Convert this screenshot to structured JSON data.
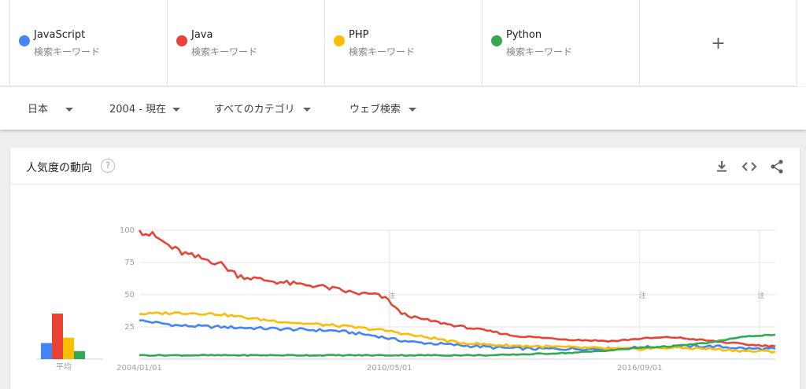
{
  "terms": [
    {
      "name": "JavaScript",
      "sub": "検索キーワード",
      "color": "#4285f4"
    },
    {
      "name": "Java",
      "sub": "検索キーワード",
      "color": "#ea4335"
    },
    {
      "name": "PHP",
      "sub": "検索キーワード",
      "color": "#fbbc04"
    },
    {
      "name": "Python",
      "sub": "検索キーワード",
      "color": "#34a853"
    }
  ],
  "add_term_label": "+",
  "filters": {
    "region": "日本",
    "period": "2004 - 現在",
    "category": "すべてのカテゴリ",
    "search_type": "ウェブ検索"
  },
  "card": {
    "title": "人気度の動向",
    "help_icon": "help-circle-icon",
    "icons": [
      "download-icon",
      "embed-code-icon",
      "share-icon"
    ]
  },
  "chart_data": {
    "type": "line",
    "x_ticks": [
      "2004/01/01",
      "2010/05/01",
      "2016/09/01"
    ],
    "y_ticks": [
      25,
      50,
      75,
      100
    ],
    "ylim": [
      0,
      100
    ],
    "x_range": [
      "2004-01",
      "2020-02"
    ],
    "grid": true,
    "note_label": "注",
    "average_label": "平均",
    "averages": [
      {
        "name": "JavaScript",
        "value": 12
      },
      {
        "name": "Java",
        "value": 34
      },
      {
        "name": "PHP",
        "value": 16
      },
      {
        "name": "Python",
        "value": 6
      }
    ],
    "series": [
      {
        "name": "JavaScript",
        "color": "#4285f4",
        "anchors": [
          [
            2004.0,
            30
          ],
          [
            2005.0,
            26
          ],
          [
            2006.0,
            25
          ],
          [
            2007.0,
            24
          ],
          [
            2008.0,
            23
          ],
          [
            2009.0,
            22
          ],
          [
            2010.0,
            18
          ],
          [
            2010.5,
            15
          ],
          [
            2011.0,
            13
          ],
          [
            2012.0,
            11
          ],
          [
            2013.0,
            9
          ],
          [
            2014.0,
            8
          ],
          [
            2015.0,
            8
          ],
          [
            2016.0,
            8
          ],
          [
            2016.7,
            9
          ],
          [
            2017.5,
            10
          ],
          [
            2018.5,
            10
          ],
          [
            2019.5,
            8
          ],
          [
            2020.1,
            8
          ]
        ]
      },
      {
        "name": "Java",
        "color": "#ea4335",
        "anchors": [
          [
            2004.0,
            100
          ],
          [
            2004.4,
            95
          ],
          [
            2004.9,
            85
          ],
          [
            2005.3,
            80
          ],
          [
            2006.0,
            75
          ],
          [
            2006.5,
            65
          ],
          [
            2007.0,
            62
          ],
          [
            2007.5,
            60
          ],
          [
            2008.0,
            58
          ],
          [
            2008.5,
            57
          ],
          [
            2009.0,
            54
          ],
          [
            2009.5,
            51
          ],
          [
            2010.0,
            50
          ],
          [
            2010.3,
            46
          ],
          [
            2010.6,
            36
          ],
          [
            2011.0,
            32
          ],
          [
            2011.5,
            29
          ],
          [
            2012.0,
            26
          ],
          [
            2013.0,
            21
          ],
          [
            2013.5,
            18
          ],
          [
            2014.0,
            17
          ],
          [
            2015.0,
            15
          ],
          [
            2016.0,
            14
          ],
          [
            2016.7,
            16
          ],
          [
            2017.5,
            17
          ],
          [
            2018.5,
            14
          ],
          [
            2019.5,
            11
          ],
          [
            2020.1,
            10
          ]
        ]
      },
      {
        "name": "PHP",
        "color": "#fbbc04",
        "anchors": [
          [
            2004.0,
            35
          ],
          [
            2005.0,
            36
          ],
          [
            2006.0,
            35
          ],
          [
            2007.0,
            31
          ],
          [
            2008.0,
            28
          ],
          [
            2009.0,
            26
          ],
          [
            2010.0,
            23
          ],
          [
            2010.5,
            21
          ],
          [
            2011.0,
            18
          ],
          [
            2011.5,
            16
          ],
          [
            2012.0,
            13
          ],
          [
            2013.0,
            11
          ],
          [
            2014.0,
            10
          ],
          [
            2015.0,
            9
          ],
          [
            2016.0,
            8
          ],
          [
            2016.7,
            8
          ],
          [
            2017.5,
            9
          ],
          [
            2018.5,
            8
          ],
          [
            2019.0,
            7
          ],
          [
            2019.5,
            6
          ],
          [
            2020.1,
            6
          ]
        ]
      },
      {
        "name": "Python",
        "color": "#34a853",
        "anchors": [
          [
            2004.0,
            3
          ],
          [
            2006.0,
            3
          ],
          [
            2008.0,
            3
          ],
          [
            2010.0,
            3
          ],
          [
            2012.0,
            3
          ],
          [
            2013.0,
            3
          ],
          [
            2014.0,
            4
          ],
          [
            2015.0,
            5
          ],
          [
            2016.0,
            7
          ],
          [
            2016.7,
            9
          ],
          [
            2017.5,
            10
          ],
          [
            2018.5,
            13
          ],
          [
            2019.0,
            16
          ],
          [
            2019.5,
            18
          ],
          [
            2020.1,
            19
          ]
        ]
      }
    ]
  }
}
